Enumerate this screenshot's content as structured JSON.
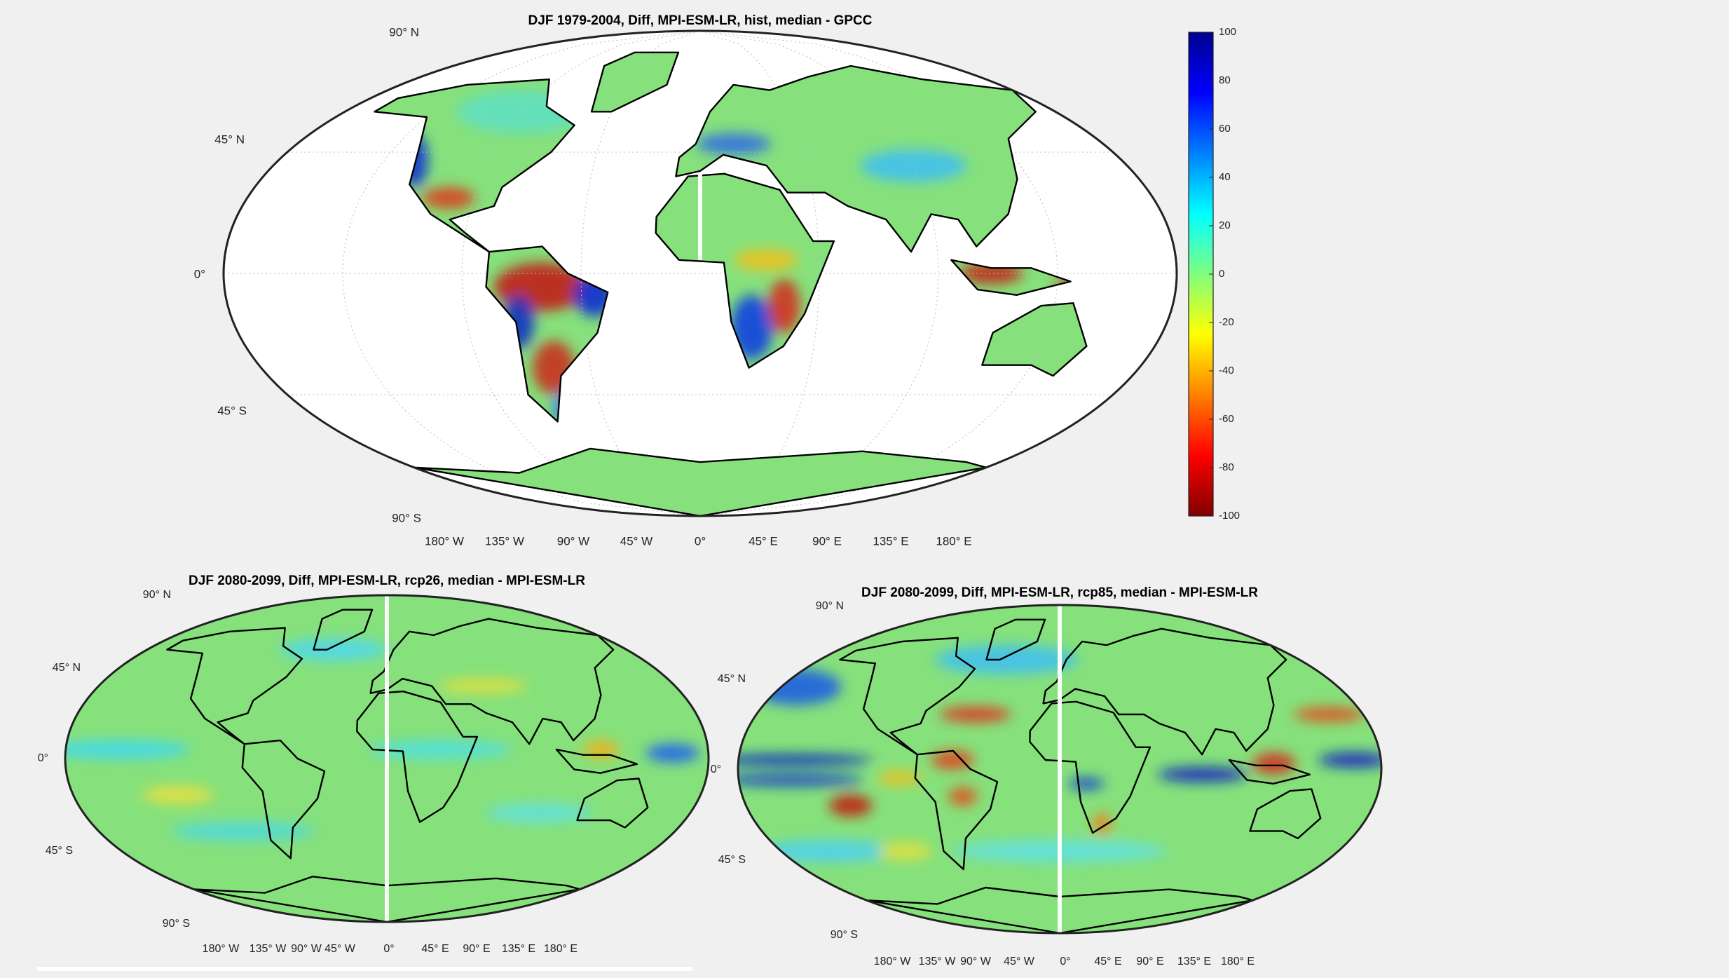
{
  "figure": {
    "colorbar": {
      "lim": [
        -100,
        100
      ],
      "ticks": [
        100,
        80,
        60,
        40,
        20,
        0,
        -20,
        -40,
        -60,
        -80,
        -100
      ]
    },
    "maps": [
      {
        "title": "DJF 1979-2004, Diff, MPI-ESM-LR, hist, median - GPCC",
        "lat_labels": [
          "90° N",
          "45° N",
          "0°",
          "45° S",
          "90° S"
        ],
        "lon_labels": [
          "180° W",
          "135° W",
          "90° W",
          "45° W",
          "0°",
          "45° E",
          "90° E",
          "135° E",
          "180° E"
        ]
      },
      {
        "title": "DJF 2080-2099, Diff, MPI-ESM-LR, rcp26, median - MPI-ESM-LR",
        "lat_labels": [
          "90° N",
          "45° N",
          "0°",
          "45° S",
          "90° S"
        ],
        "lon_labels": [
          "180° W",
          "135° W",
          "90° W",
          "45° W",
          "0°",
          "45° E",
          "90° E",
          "135° E",
          "180° E"
        ]
      },
      {
        "title": "DJF 2080-2099, Diff, MPI-ESM-LR, rcp85, median - MPI-ESM-LR",
        "lat_labels": [
          "90° N",
          "45° N",
          "0°",
          "45° S",
          "90° S"
        ],
        "lon_labels": [
          "180° W",
          "135° W",
          "90° W",
          "45° W",
          "0°",
          "45° E",
          "90° E",
          "135° E",
          "180° E"
        ]
      }
    ]
  }
}
